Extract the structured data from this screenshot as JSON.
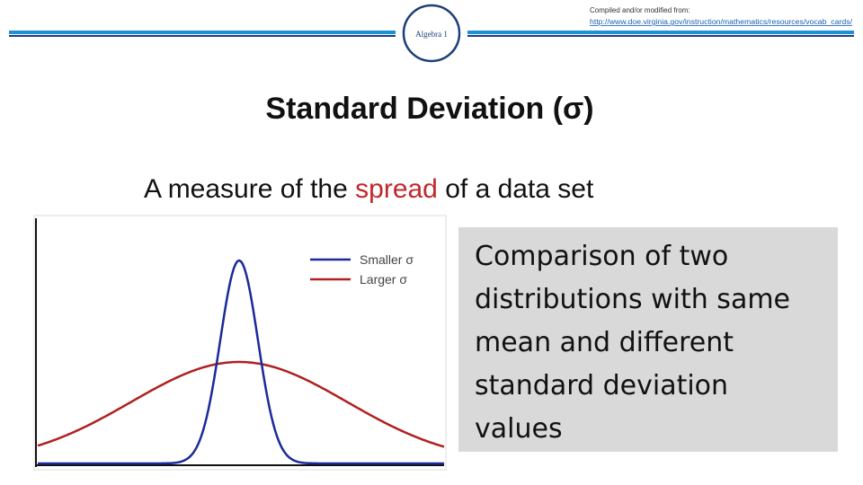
{
  "header": {
    "badge": "Algebra 1",
    "source_label": "Compiled and/or modified from:",
    "source_url": "http://www.doe.virginia.gov/instruction/mathematics/resources/vocab_cards/"
  },
  "title": "Standard Deviation (σ)",
  "subtitle": {
    "before": "A measure of the ",
    "highlight": "spread",
    "after": " of a data set"
  },
  "figure": {
    "legend": [
      "Smaller σ",
      "Larger σ"
    ]
  },
  "note": [
    "Comparison of two",
    "distributions with same",
    "mean and different",
    "standard deviation",
    "values"
  ]
}
